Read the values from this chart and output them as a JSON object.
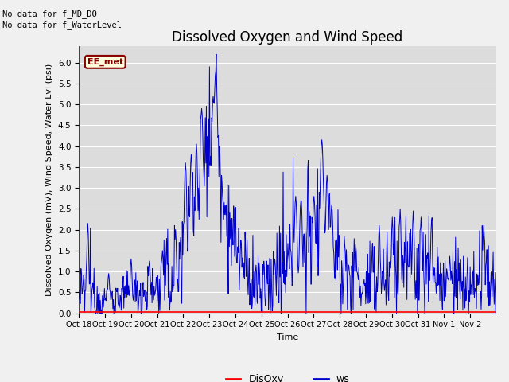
{
  "title": "Dissolved Oxygen and Wind Speed",
  "xlabel": "Time",
  "ylabel": "Dissolved Oxygen (mV), Wind Speed, Water Lvl (psi)",
  "ylim": [
    0.0,
    6.4
  ],
  "yticks": [
    0.0,
    0.5,
    1.0,
    1.5,
    2.0,
    2.5,
    3.0,
    3.5,
    4.0,
    4.5,
    5.0,
    5.5,
    6.0
  ],
  "xtick_labels": [
    "Oct 18",
    "Oct 19",
    "Oct 20",
    "Oct 21",
    "Oct 22",
    "Oct 23",
    "Oct 24",
    "Oct 25",
    "Oct 26",
    "Oct 27",
    "Oct 28",
    "Oct 29",
    "Oct 30",
    "Oct 31",
    "Nov 1",
    "Nov 2"
  ],
  "no_data_text1": "No data for f_MD_DO",
  "no_data_text2": "No data for f_WaterLevel",
  "ee_met_label": "EE_met",
  "legend_labels": [
    "DisOxy",
    "ws"
  ],
  "legend_colors": [
    "#ff0000",
    "#0000cc"
  ],
  "disoxy_value": 0.03,
  "fig_bg_color": "#f0f0f0",
  "plot_bg_color": "#dcdcdc",
  "grid_color": "#ffffff",
  "title_fontsize": 12,
  "axis_label_fontsize": 8,
  "tick_fontsize": 7.5,
  "legend_fontsize": 9
}
